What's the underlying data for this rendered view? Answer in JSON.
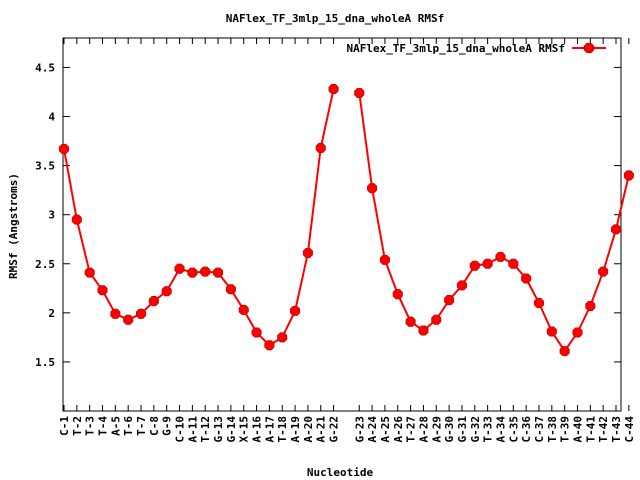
{
  "chart_data": {
    "type": "line",
    "title": "NAFlex_TF_3mlp_15_dna_wholeA RMSf",
    "xlabel": "Nucleotide",
    "ylabel": "RMSf (Angstroms)",
    "ylim": [
      1.0,
      4.8
    ],
    "yticks": [
      "1.5",
      "2",
      "2.5",
      "3",
      "3.5",
      "4",
      "4.5"
    ],
    "yticks_values": [
      1.5,
      2.0,
      2.5,
      3.0,
      3.5,
      4.0,
      4.5
    ],
    "legend_position": "top-right",
    "grid": false,
    "series_color": "#ff0000",
    "series": [
      {
        "name": "NAFlex_TF_3mlp_15_dna_wholeA RMSf",
        "values": [
          3.67,
          2.95,
          2.41,
          2.23,
          1.99,
          1.93,
          1.99,
          2.12,
          2.22,
          2.45,
          2.41,
          2.42,
          2.41,
          2.24,
          2.03,
          1.8,
          1.67,
          1.75,
          2.02,
          2.61,
          3.68,
          4.28,
          4.24,
          3.27,
          2.54,
          2.19,
          1.91,
          1.82,
          1.93,
          2.13,
          2.28,
          2.48,
          2.5,
          2.57,
          2.5,
          2.35,
          2.1,
          1.81,
          1.61,
          1.8,
          2.07,
          2.42,
          2.85,
          3.4
        ]
      }
    ],
    "categories": [
      "C-1",
      "T-2",
      "T-3",
      "T-4",
      "A-5",
      "T-6",
      "T-7",
      "C-8",
      "G-9",
      "C-10",
      "A-11",
      "T-12",
      "G-13",
      "G-14",
      "X-15",
      "A-16",
      "A-17",
      "T-18",
      "A-19",
      "A-20",
      "A-21",
      "G-22",
      "G-23",
      "A-24",
      "A-25",
      "A-26",
      "T-27",
      "A-28",
      "A-29",
      "G-30",
      "G-31",
      "G-32",
      "T-33",
      "A-34",
      "C-35",
      "C-36",
      "C-37",
      "T-38",
      "T-39",
      "A-40",
      "T-41",
      "T-42",
      "T-43",
      "C-44"
    ]
  }
}
